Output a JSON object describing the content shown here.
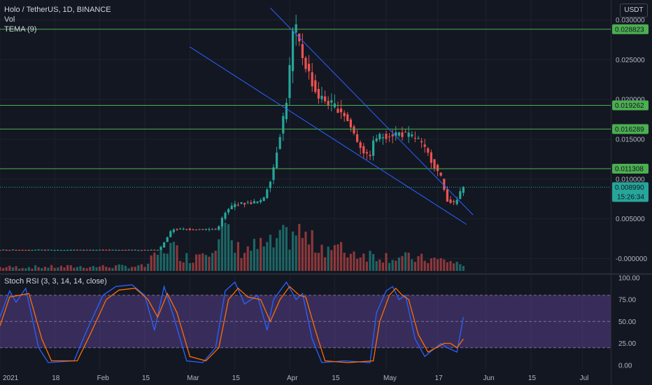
{
  "header": {
    "symbol_line": "Holo / TetherUS, 1D, BINANCE",
    "vol_label": "Vol",
    "tema_label": "TEMA (9)",
    "currency_button": "USDT"
  },
  "colors": {
    "background": "#131722",
    "up": "#26a69a",
    "down": "#ef5350",
    "horizontal_levels": "#4caf50",
    "channel": "#2962ff",
    "rsi_k": "#2962ff",
    "rsi_d": "#ff6d00",
    "rsi_band": "#7e57c2",
    "price_badge": "#26a69a",
    "level_badge": "#4caf50"
  },
  "chart_data": [
    {
      "type": "candlestick",
      "title": "Holo / TetherUS, 1D, BINANCE",
      "price_axis_ticks": [
        "0.030000",
        "0.025000",
        "0.020000",
        "0.015000",
        "0.010000",
        "0.005000",
        "-0.000000"
      ],
      "price_axis_tick_values": [
        0.03,
        0.025,
        0.02,
        0.015,
        0.01,
        0.005,
        0.0
      ],
      "ylim": [
        -0.0018,
        0.0325
      ],
      "time_axis_ticks": [
        "2021",
        "18",
        "Feb",
        "15",
        "Mar",
        "15",
        "Apr",
        "15",
        "May",
        "17",
        "Jun",
        "15",
        "Jul"
      ],
      "time_axis_tick_dates": [
        "2021-01-01",
        "2021-01-18",
        "2021-02-01",
        "2021-02-15",
        "2021-03-01",
        "2021-03-15",
        "2021-04-01",
        "2021-04-15",
        "2021-05-01",
        "2021-05-17",
        "2021-06-01",
        "2021-06-15",
        "2021-07-01"
      ],
      "horizontal_levels": [
        {
          "value": 0.028823,
          "label": "0.028823"
        },
        {
          "value": 0.019262,
          "label": "0.019262"
        },
        {
          "value": 0.016289,
          "label": "0.016289"
        },
        {
          "value": 0.011308,
          "label": "0.011308"
        }
      ],
      "current_price": {
        "value": 0.00899,
        "label": "0.008990",
        "countdown": "15:26:34"
      },
      "channel_lines": [
        {
          "from": {
            "date": "2021-03-26",
            "price": 0.0315
          },
          "to": {
            "date": "2021-05-28",
            "price": 0.0055
          }
        },
        {
          "from": {
            "date": "2021-03-01",
            "price": 0.0266
          },
          "to": {
            "date": "2021-05-26",
            "price": 0.0043
          }
        }
      ],
      "price_path": [
        {
          "date": "2021-01-01",
          "price": 0.0011
        },
        {
          "date": "2021-02-20",
          "price": 0.0011
        },
        {
          "date": "2021-02-24",
          "price": 0.0037
        },
        {
          "date": "2021-03-10",
          "price": 0.0037
        },
        {
          "date": "2021-03-12",
          "price": 0.0055
        },
        {
          "date": "2021-03-15",
          "price": 0.0068
        },
        {
          "date": "2021-03-24",
          "price": 0.0072
        },
        {
          "date": "2021-03-27",
          "price": 0.0105
        },
        {
          "date": "2021-03-30",
          "price": 0.0167
        },
        {
          "date": "2021-04-01",
          "price": 0.021
        },
        {
          "date": "2021-04-02",
          "price": 0.027
        },
        {
          "date": "2021-04-03",
          "price": 0.0295
        },
        {
          "date": "2021-04-05",
          "price": 0.026
        },
        {
          "date": "2021-04-10",
          "price": 0.0205
        },
        {
          "date": "2021-04-18",
          "price": 0.0185
        },
        {
          "date": "2021-04-23",
          "price": 0.0145
        },
        {
          "date": "2021-04-26",
          "price": 0.0125
        },
        {
          "date": "2021-04-28",
          "price": 0.0152
        },
        {
          "date": "2021-05-05",
          "price": 0.0158
        },
        {
          "date": "2021-05-11",
          "price": 0.0152
        },
        {
          "date": "2021-05-15",
          "price": 0.0128
        },
        {
          "date": "2021-05-19",
          "price": 0.0098
        },
        {
          "date": "2021-05-20",
          "price": 0.0075
        },
        {
          "date": "2021-05-23",
          "price": 0.0068
        },
        {
          "date": "2021-05-25",
          "price": 0.00899
        }
      ],
      "volume_profile": [
        {
          "date": "2021-01-01",
          "rel": 0.08
        },
        {
          "date": "2021-02-15",
          "rel": 0.1
        },
        {
          "date": "2021-02-22",
          "rel": 0.55
        },
        {
          "date": "2021-03-01",
          "rel": 0.25
        },
        {
          "date": "2021-03-12",
          "rel": 0.85
        },
        {
          "date": "2021-03-15",
          "rel": 0.45
        },
        {
          "date": "2021-03-27",
          "rel": 0.55
        },
        {
          "date": "2021-04-03",
          "rel": 0.85
        },
        {
          "date": "2021-04-08",
          "rel": 0.6
        },
        {
          "date": "2021-04-20",
          "rel": 0.4
        },
        {
          "date": "2021-05-03",
          "rel": 0.3
        },
        {
          "date": "2021-05-20",
          "rel": 0.22
        },
        {
          "date": "2021-05-25",
          "rel": 0.12
        }
      ]
    },
    {
      "type": "line",
      "title": "Stoch RSI (3, 3, 14, 14, close)",
      "yticks": [
        "100.00",
        "75.00",
        "50.00",
        "25.00",
        "0.00"
      ],
      "ytick_values": [
        100,
        75,
        50,
        25,
        0
      ],
      "ylim": [
        -5,
        103
      ],
      "band": [
        20,
        80
      ],
      "series": [
        {
          "key": "k",
          "points": [
            {
              "date": "2021-01-01",
              "value": 55
            },
            {
              "date": "2021-01-04",
              "value": 85
            },
            {
              "date": "2021-01-06",
              "value": 72
            },
            {
              "date": "2021-01-09",
              "value": 88
            },
            {
              "date": "2021-01-13",
              "value": 20
            },
            {
              "date": "2021-01-16",
              "value": 3
            },
            {
              "date": "2021-01-24",
              "value": 5
            },
            {
              "date": "2021-01-28",
              "value": 40
            },
            {
              "date": "2021-02-02",
              "value": 80
            },
            {
              "date": "2021-02-06",
              "value": 90
            },
            {
              "date": "2021-02-11",
              "value": 92
            },
            {
              "date": "2021-02-15",
              "value": 80
            },
            {
              "date": "2021-02-18",
              "value": 40
            },
            {
              "date": "2021-02-21",
              "value": 90
            },
            {
              "date": "2021-02-24",
              "value": 55
            },
            {
              "date": "2021-02-28",
              "value": 5
            },
            {
              "date": "2021-03-05",
              "value": 3
            },
            {
              "date": "2021-03-09",
              "value": 20
            },
            {
              "date": "2021-03-12",
              "value": 85
            },
            {
              "date": "2021-03-15",
              "value": 95
            },
            {
              "date": "2021-03-18",
              "value": 70
            },
            {
              "date": "2021-03-22",
              "value": 80
            },
            {
              "date": "2021-03-25",
              "value": 40
            },
            {
              "date": "2021-03-27",
              "value": 75
            },
            {
              "date": "2021-03-31",
              "value": 95
            },
            {
              "date": "2021-04-03",
              "value": 75
            },
            {
              "date": "2021-04-05",
              "value": 82
            },
            {
              "date": "2021-04-08",
              "value": 30
            },
            {
              "date": "2021-04-11",
              "value": 3
            },
            {
              "date": "2021-04-18",
              "value": 5
            },
            {
              "date": "2021-04-26",
              "value": 3
            },
            {
              "date": "2021-04-28",
              "value": 60
            },
            {
              "date": "2021-05-01",
              "value": 85
            },
            {
              "date": "2021-05-03",
              "value": 90
            },
            {
              "date": "2021-05-05",
              "value": 75
            },
            {
              "date": "2021-05-07",
              "value": 80
            },
            {
              "date": "2021-05-10",
              "value": 30
            },
            {
              "date": "2021-05-13",
              "value": 10
            },
            {
              "date": "2021-05-18",
              "value": 25
            },
            {
              "date": "2021-05-20",
              "value": 20
            },
            {
              "date": "2021-05-23",
              "value": 15
            },
            {
              "date": "2021-05-25",
              "value": 55
            }
          ]
        },
        {
          "key": "d",
          "points": [
            {
              "date": "2021-01-01",
              "value": 45
            },
            {
              "date": "2021-01-04",
              "value": 78
            },
            {
              "date": "2021-01-07",
              "value": 80
            },
            {
              "date": "2021-01-10",
              "value": 82
            },
            {
              "date": "2021-01-14",
              "value": 30
            },
            {
              "date": "2021-01-17",
              "value": 5
            },
            {
              "date": "2021-01-25",
              "value": 5
            },
            {
              "date": "2021-01-29",
              "value": 35
            },
            {
              "date": "2021-02-03",
              "value": 75
            },
            {
              "date": "2021-02-07",
              "value": 86
            },
            {
              "date": "2021-02-12",
              "value": 88
            },
            {
              "date": "2021-02-16",
              "value": 75
            },
            {
              "date": "2021-02-19",
              "value": 55
            },
            {
              "date": "2021-02-22",
              "value": 82
            },
            {
              "date": "2021-02-25",
              "value": 60
            },
            {
              "date": "2021-03-01",
              "value": 10
            },
            {
              "date": "2021-03-06",
              "value": 5
            },
            {
              "date": "2021-03-10",
              "value": 20
            },
            {
              "date": "2021-03-13",
              "value": 75
            },
            {
              "date": "2021-03-16",
              "value": 88
            },
            {
              "date": "2021-03-19",
              "value": 78
            },
            {
              "date": "2021-03-23",
              "value": 75
            },
            {
              "date": "2021-03-26",
              "value": 50
            },
            {
              "date": "2021-03-29",
              "value": 75
            },
            {
              "date": "2021-04-01",
              "value": 90
            },
            {
              "date": "2021-04-04",
              "value": 80
            },
            {
              "date": "2021-04-06",
              "value": 78
            },
            {
              "date": "2021-04-09",
              "value": 40
            },
            {
              "date": "2021-04-12",
              "value": 5
            },
            {
              "date": "2021-04-19",
              "value": 3
            },
            {
              "date": "2021-04-27",
              "value": 5
            },
            {
              "date": "2021-04-29",
              "value": 50
            },
            {
              "date": "2021-05-02",
              "value": 80
            },
            {
              "date": "2021-05-04",
              "value": 88
            },
            {
              "date": "2021-05-06",
              "value": 80
            },
            {
              "date": "2021-05-08",
              "value": 75
            },
            {
              "date": "2021-05-11",
              "value": 35
            },
            {
              "date": "2021-05-14",
              "value": 15
            },
            {
              "date": "2021-05-19",
              "value": 25
            },
            {
              "date": "2021-05-21",
              "value": 25
            },
            {
              "date": "2021-05-23",
              "value": 20
            },
            {
              "date": "2021-05-25",
              "value": 30
            }
          ]
        }
      ]
    }
  ]
}
